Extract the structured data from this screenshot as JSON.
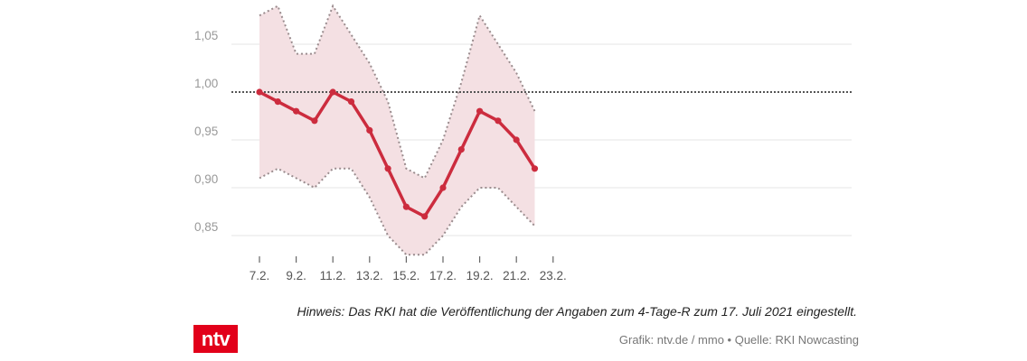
{
  "chart_data": {
    "type": "line",
    "x": [
      "7.2.",
      "8.2.",
      "9.2.",
      "10.2.",
      "11.2.",
      "12.2.",
      "13.2.",
      "14.2.",
      "15.2.",
      "16.2.",
      "17.2.",
      "18.2.",
      "19.2.",
      "20.2.",
      "21.2.",
      "22.2."
    ],
    "x_tick_labels": [
      "7.2.",
      "9.2.",
      "11.2.",
      "13.2.",
      "15.2.",
      "17.2.",
      "19.2.",
      "21.2.",
      "23.2."
    ],
    "series": [
      {
        "values": [
          1.0,
          0.99,
          0.98,
          0.97,
          1.0,
          0.99,
          0.96,
          0.92,
          0.88,
          0.87,
          0.9,
          0.94,
          0.98,
          0.97,
          0.95,
          0.92
        ],
        "color": "#cc2c3e"
      }
    ],
    "band": {
      "upper": [
        1.08,
        1.09,
        1.04,
        1.04,
        1.09,
        1.06,
        1.03,
        0.99,
        0.92,
        0.91,
        0.95,
        1.01,
        1.08,
        1.05,
        1.02,
        0.98
      ],
      "lower": [
        0.91,
        0.92,
        0.91,
        0.9,
        0.92,
        0.92,
        0.89,
        0.85,
        0.83,
        0.83,
        0.85,
        0.88,
        0.9,
        0.9,
        0.88,
        0.86
      ],
      "fill_color": "#f4e0e3",
      "border_color": "#9a8c8e"
    },
    "reference_line": {
      "value": 1.0,
      "color": "#555555"
    },
    "y_ticks": [
      0.85,
      0.9,
      0.95,
      1.0,
      1.05
    ],
    "y_tick_labels": [
      "0,85",
      "0,90",
      "0,95",
      "1,00",
      "1,05"
    ],
    "ylim": [
      0.83,
      1.1
    ],
    "grid": true,
    "title": "",
    "xlabel": "",
    "ylabel": ""
  },
  "note": "Hinweis: Das RKI hat die Veröffentlichung der Angaben zum 4-Tage-R zum 17. Juli 2021 eingestellt.",
  "source": "Grafik: ntv.de / mmo • Quelle: RKI Nowcasting",
  "logo_text": "ntv",
  "colors": {
    "logo_bg": "#e2001a",
    "grid": "#e6e6e6"
  }
}
